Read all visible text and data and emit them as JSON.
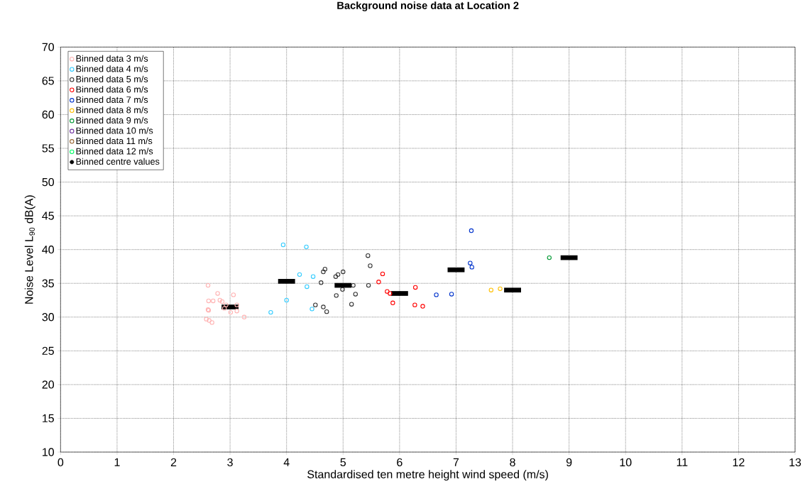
{
  "chart_data": {
    "type": "scatter",
    "title": "Background noise data at Location 2",
    "xlabel": "Standardised ten metre height wind speed (m/s)",
    "ylabel": "Noise Level L$_{90}$ dB(A)",
    "xlim": [
      0,
      13
    ],
    "xticks": [
      0,
      1,
      2,
      3,
      4,
      5,
      6,
      7,
      8,
      9,
      10,
      11,
      12,
      13
    ],
    "ylim": [
      10,
      70
    ],
    "yticks": [
      10,
      15,
      20,
      25,
      30,
      35,
      40,
      45,
      50,
      55,
      60,
      65,
      70
    ],
    "grid": true,
    "legend": "top left",
    "marker": "circle",
    "series": [
      {
        "name": "Binned data 3 m/s",
        "color": "#ffb3b3",
        "x": [
          2.61,
          2.78,
          3.06,
          2.62,
          2.7,
          2.82,
          2.86,
          2.93,
          3.12,
          2.61,
          2.62,
          2.9,
          3.01,
          3.12,
          3.25,
          2.58,
          2.63,
          2.68
        ],
        "values": [
          34.7,
          33.5,
          33.3,
          32.4,
          32.4,
          32.5,
          32.3,
          31.8,
          31.8,
          31.1,
          31.0,
          31.3,
          30.7,
          30.9,
          30.0,
          29.7,
          29.5,
          29.2
        ]
      },
      {
        "name": "Binned data 4 m/s",
        "color": "#33ccff",
        "x": [
          3.72,
          4.0,
          4.36,
          3.94,
          4.35,
          4.23,
          4.47,
          4.45
        ],
        "values": [
          30.7,
          32.5,
          34.5,
          40.7,
          40.4,
          36.3,
          36.0,
          31.2
        ]
      },
      {
        "name": "Binned data 5 m/s",
        "color": "#333333",
        "x": [
          5.44,
          5.48,
          4.68,
          4.65,
          5.0,
          4.91,
          4.87,
          4.61,
          5.18,
          5.45,
          4.99,
          4.88,
          5.22,
          5.15,
          4.51,
          4.65,
          4.71
        ],
        "values": [
          39.1,
          37.6,
          37.1,
          36.7,
          36.7,
          36.3,
          36.0,
          35.1,
          34.7,
          34.7,
          34.1,
          33.2,
          33.4,
          31.9,
          31.8,
          31.5,
          30.8
        ]
      },
      {
        "name": "Binned data 6 m/s",
        "color": "#ff0000",
        "x": [
          5.7,
          5.63,
          5.78,
          5.83,
          5.88,
          6.28,
          6.27,
          6.41
        ],
        "values": [
          36.4,
          35.2,
          33.8,
          33.5,
          32.1,
          34.4,
          31.8,
          31.6
        ]
      },
      {
        "name": "Binned data 7 m/s",
        "color": "#0033cc",
        "x": [
          6.65,
          6.92,
          7.27,
          7.25,
          7.28
        ],
        "values": [
          33.3,
          33.4,
          42.8,
          38.0,
          37.4
        ]
      },
      {
        "name": "Binned data 8 m/s",
        "color": "#ffc000",
        "x": [
          7.62,
          7.78
        ],
        "values": [
          34.0,
          34.2
        ]
      },
      {
        "name": "Binned data 9 m/s",
        "color": "#009933",
        "x": [
          8.65
        ],
        "values": [
          38.8
        ]
      },
      {
        "name": "Binned data 10 m/s",
        "color": "#7030a0"
      },
      {
        "name": "Binned data 11 m/s",
        "color": "#996633"
      },
      {
        "name": "Binned data 12 m/s",
        "color": "#00ff66"
      },
      {
        "name": "Binned centre values",
        "color": "#000000",
        "marker": "none",
        "x": [
          3,
          4,
          5,
          6,
          7,
          8,
          9
        ],
        "values": [
          31.5,
          35.3,
          34.7,
          33.5,
          37.0,
          34.0,
          38.8
        ],
        "xerrors": [
          0.15,
          0.15,
          0.15,
          0.15,
          0.15,
          0.15,
          0.15
        ]
      }
    ]
  }
}
